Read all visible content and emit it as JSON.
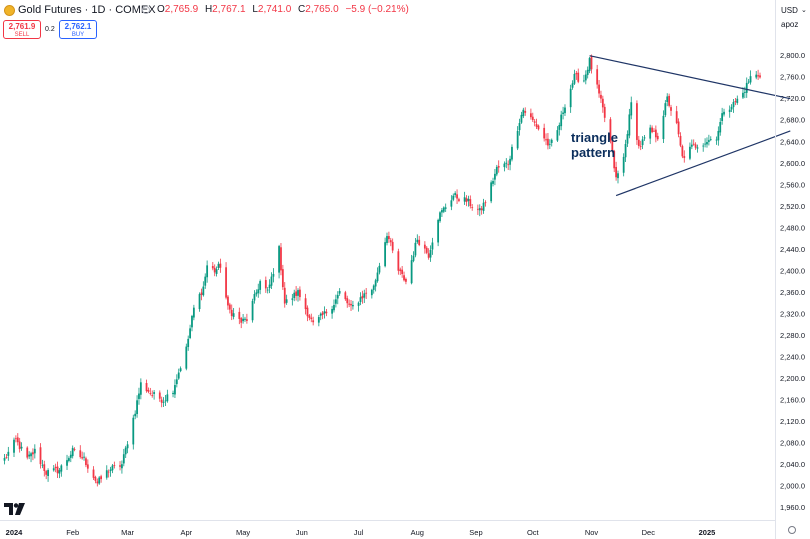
{
  "header": {
    "symbol": "Gold Futures · 1D · COMEX",
    "ohlc": [
      {
        "label": "O",
        "value": "2,765.9"
      },
      {
        "label": "H",
        "value": "2,767.1"
      },
      {
        "label": "L",
        "value": "2,741.0"
      },
      {
        "label": "C",
        "value": "2,765.0"
      }
    ],
    "change": "−5.9 (−0.21%)",
    "sell": {
      "price": "2,761.9",
      "label": "SELL"
    },
    "spread": "0.2",
    "buy": {
      "price": "2,762.1",
      "label": "BUY"
    }
  },
  "axis": {
    "currency": "USD",
    "scale_mode": "apoz"
  },
  "colors": {
    "up": "#089981",
    "down": "#f23645",
    "trendline": "#1f3566",
    "annotation": "#0b2e5c"
  },
  "icons": {
    "symbol": "gold-coin-icon",
    "logo": "tradingview-logo-icon",
    "settings": "gear-icon"
  },
  "chart_data": {
    "type": "candlestick",
    "ylim": [
      1935,
      2818
    ],
    "yticks": [
      1960,
      2000,
      2040,
      2080,
      2120,
      2160,
      2200,
      2240,
      2280,
      2320,
      2360,
      2400,
      2440,
      2480,
      2520,
      2560,
      2600,
      2640,
      2680,
      2720,
      2760,
      2800
    ],
    "ytick_labels": [
      "1,960.0",
      "2,000.0",
      "2,040.0",
      "2,080.0",
      "2,120.0",
      "2,160.0",
      "2,200.0",
      "2,240.0",
      "2,280.0",
      "2,320.0",
      "2,360.0",
      "2,400.0",
      "2,440.0",
      "2,480.0",
      "2,520.0",
      "2,560.0",
      "2,600.0",
      "2,640.0",
      "2,680.0",
      "2,720.0",
      "2,760.0",
      "2,800.0"
    ],
    "months": [
      {
        "label": "2024",
        "date": "2024-01-01",
        "bold": true
      },
      {
        "label": "Feb",
        "date": "2024-02-01",
        "bold": false
      },
      {
        "label": "Mar",
        "date": "2024-03-01",
        "bold": false
      },
      {
        "label": "Apr",
        "date": "2024-04-01",
        "bold": false
      },
      {
        "label": "May",
        "date": "2024-05-01",
        "bold": false
      },
      {
        "label": "Jun",
        "date": "2024-06-01",
        "bold": false
      },
      {
        "label": "Jul",
        "date": "2024-07-01",
        "bold": false
      },
      {
        "label": "Aug",
        "date": "2024-08-01",
        "bold": false
      },
      {
        "label": "Sep",
        "date": "2024-09-01",
        "bold": false
      },
      {
        "label": "Oct",
        "date": "2024-10-01",
        "bold": false
      },
      {
        "label": "Nov",
        "date": "2024-11-01",
        "bold": false
      },
      {
        "label": "Dec",
        "date": "2024-12-01",
        "bold": false
      },
      {
        "label": "2025",
        "date": "2025-01-01",
        "bold": true
      }
    ],
    "path": [
      [
        "2023-12-27",
        2050
      ],
      [
        "2024-01-02",
        2085
      ],
      [
        "2024-01-08",
        2050
      ],
      [
        "2024-01-12",
        2065
      ],
      [
        "2024-01-18",
        2025
      ],
      [
        "2024-01-25",
        2030
      ],
      [
        "2024-02-01",
        2065
      ],
      [
        "2024-02-07",
        2050
      ],
      [
        "2024-02-14",
        2005
      ],
      [
        "2024-02-20",
        2030
      ],
      [
        "2024-02-27",
        2040
      ],
      [
        "2024-03-05",
        2140
      ],
      [
        "2024-03-08",
        2190
      ],
      [
        "2024-03-14",
        2170
      ],
      [
        "2024-03-20",
        2160
      ],
      [
        "2024-03-25",
        2180
      ],
      [
        "2024-04-01",
        2255
      ],
      [
        "2024-04-05",
        2330
      ],
      [
        "2024-04-10",
        2370
      ],
      [
        "2024-04-12",
        2410
      ],
      [
        "2024-04-16",
        2400
      ],
      [
        "2024-04-19",
        2410
      ],
      [
        "2024-04-23",
        2330
      ],
      [
        "2024-04-30",
        2305
      ],
      [
        "2024-05-03",
        2310
      ],
      [
        "2024-05-10",
        2380
      ],
      [
        "2024-05-14",
        2360
      ],
      [
        "2024-05-20",
        2440
      ],
      [
        "2024-05-23",
        2340
      ],
      [
        "2024-05-30",
        2360
      ],
      [
        "2024-06-07",
        2300
      ],
      [
        "2024-06-13",
        2320
      ],
      [
        "2024-06-18",
        2340
      ],
      [
        "2024-06-21",
        2360
      ],
      [
        "2024-06-27",
        2330
      ],
      [
        "2024-07-02",
        2350
      ],
      [
        "2024-07-09",
        2370
      ],
      [
        "2024-07-16",
        2470
      ],
      [
        "2024-07-22",
        2400
      ],
      [
        "2024-07-26",
        2380
      ],
      [
        "2024-08-01",
        2460
      ],
      [
        "2024-08-07",
        2430
      ],
      [
        "2024-08-12",
        2500
      ],
      [
        "2024-08-20",
        2540
      ],
      [
        "2024-08-27",
        2530
      ],
      [
        "2024-09-03",
        2510
      ],
      [
        "2024-09-06",
        2530
      ],
      [
        "2024-09-12",
        2590
      ],
      [
        "2024-09-18",
        2600
      ],
      [
        "2024-09-24",
        2680
      ],
      [
        "2024-09-26",
        2700
      ],
      [
        "2024-10-03",
        2670
      ],
      [
        "2024-10-10",
        2630
      ],
      [
        "2024-10-14",
        2660
      ],
      [
        "2024-10-18",
        2710
      ],
      [
        "2024-10-23",
        2760
      ],
      [
        "2024-10-28",
        2755
      ],
      [
        "2024-10-31",
        2790
      ],
      [
        "2024-11-04",
        2740
      ],
      [
        "2024-11-07",
        2700
      ],
      [
        "2024-11-11",
        2640
      ],
      [
        "2024-11-14",
        2570
      ],
      [
        "2024-11-18",
        2610
      ],
      [
        "2024-11-22",
        2710
      ],
      [
        "2024-11-26",
        2630
      ],
      [
        "2024-12-02",
        2660
      ],
      [
        "2024-12-06",
        2650
      ],
      [
        "2024-12-11",
        2720
      ],
      [
        "2024-12-16",
        2670
      ],
      [
        "2024-12-19",
        2610
      ],
      [
        "2024-12-24",
        2630
      ],
      [
        "2024-12-31",
        2640
      ],
      [
        "2025-01-06",
        2650
      ],
      [
        "2025-01-10",
        2700
      ],
      [
        "2025-01-15",
        2710
      ],
      [
        "2025-01-20",
        2730
      ],
      [
        "2025-01-24",
        2760
      ],
      [
        "2025-01-29",
        2765
      ]
    ],
    "last_date": "2025-01-29",
    "trendlines": [
      {
        "start": [
          "2024-10-31",
          2800
        ],
        "end": [
          "2025-02-14",
          2720
        ]
      },
      {
        "start": [
          "2024-11-14",
          2540
        ],
        "end": [
          "2025-02-14",
          2660
        ]
      }
    ],
    "annotations": [
      "triangle",
      "pattern"
    ]
  }
}
